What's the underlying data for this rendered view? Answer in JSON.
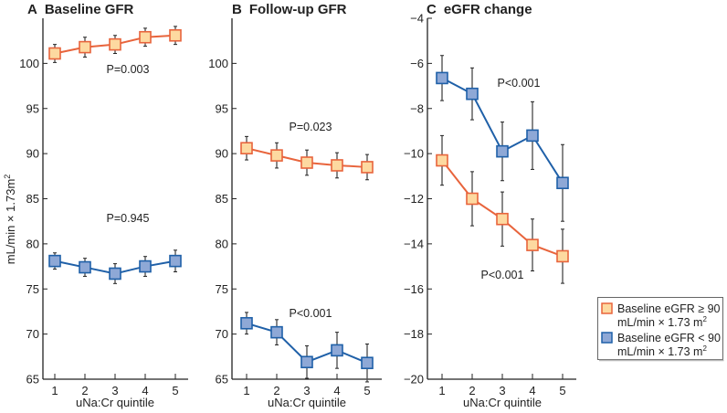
{
  "chart_data": [
    {
      "type": "line",
      "panel_letter": "A",
      "title": "Baseline GFR",
      "xlabel": "uNa:Cr quintile",
      "ylabel": "mL/min × 1.73m²",
      "x": [
        1,
        2,
        3,
        4,
        5
      ],
      "ylim": [
        65,
        105
      ],
      "yticks": [
        65,
        70,
        75,
        80,
        85,
        90,
        95,
        100
      ],
      "series": [
        {
          "name": "Baseline eGFR ≥ 90 mL/min × 1.73 m²",
          "values": [
            101.1,
            101.8,
            102.1,
            102.9,
            103.1
          ],
          "errors": [
            1.0,
            1.1,
            1.0,
            1.0,
            1.0
          ]
        },
        {
          "name": "Baseline eGFR < 90 mL/min × 1.73 m²",
          "values": [
            78.1,
            77.4,
            76.7,
            77.5,
            78.1
          ],
          "errors": [
            0.9,
            1.0,
            1.1,
            1.1,
            1.2
          ]
        }
      ],
      "annotations": [
        "P=0.003",
        "P=0.945"
      ]
    },
    {
      "type": "line",
      "panel_letter": "B",
      "title": "Follow-up GFR",
      "xlabel": "uNa:Cr quintile",
      "x": [
        1,
        2,
        3,
        4,
        5
      ],
      "ylim": [
        65,
        105
      ],
      "yticks": [
        65,
        70,
        75,
        80,
        85,
        90,
        95,
        100
      ],
      "series": [
        {
          "name": "Baseline eGFR ≥ 90 mL/min × 1.73 m²",
          "values": [
            90.6,
            89.8,
            89.0,
            88.7,
            88.5
          ],
          "errors": [
            1.3,
            1.4,
            1.4,
            1.4,
            1.4
          ]
        },
        {
          "name": "Baseline eGFR < 90 mL/min × 1.73 m²",
          "values": [
            71.2,
            70.2,
            66.9,
            68.2,
            66.8
          ],
          "errors": [
            1.2,
            1.4,
            1.8,
            2.0,
            2.1
          ]
        }
      ],
      "annotations": [
        "P=0.023",
        "P<0.001"
      ]
    },
    {
      "type": "line",
      "panel_letter": "C",
      "title": "eGFR change",
      "xlabel": "uNa:Cr quintile",
      "x": [
        1,
        2,
        3,
        4,
        5
      ],
      "ylim": [
        -20,
        -4
      ],
      "yticks": [
        -20,
        -18,
        -16,
        -14,
        -12,
        -10,
        -8,
        -6,
        -4
      ],
      "series": [
        {
          "name": "Baseline eGFR ≥ 90 mL/min × 1.73 m²",
          "values": [
            -10.3,
            -12.0,
            -12.9,
            -14.05,
            -14.55
          ],
          "errors": [
            1.1,
            1.2,
            1.2,
            1.15,
            1.2
          ]
        },
        {
          "name": "Baseline eGFR < 90 mL/min × 1.73 m²",
          "values": [
            -6.65,
            -7.35,
            -9.9,
            -9.2,
            -11.3
          ],
          "errors": [
            1.0,
            1.15,
            1.3,
            1.5,
            1.7
          ]
        }
      ],
      "annotations": [
        "P<0.001",
        "P<0.001"
      ]
    }
  ],
  "legend": {
    "items": [
      {
        "line1": "Baseline eGFR ≥ 90",
        "line2": "mL/min × 1.73 m²"
      },
      {
        "line1": "Baseline eGFR < 90",
        "line2": "mL/min × 1.73 m²"
      }
    ]
  },
  "colors": {
    "high_line": "#e8643c",
    "high_fill": "#fdd9a0",
    "low_line": "#1f60a8",
    "low_fill": "#8ea8d6",
    "error": "#555555"
  }
}
